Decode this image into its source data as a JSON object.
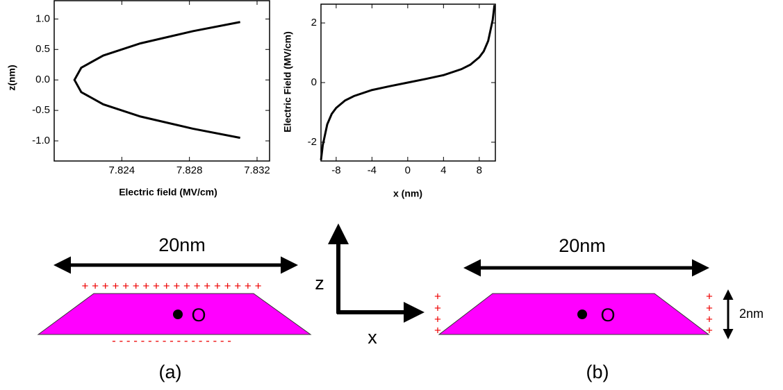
{
  "chart_data": [
    {
      "type": "line",
      "x_label": "Electric field (MV/cm)",
      "y_label": "z(nm)",
      "x": [
        7.831,
        7.8282,
        7.8251,
        7.8229,
        7.8216,
        7.8212,
        7.8216,
        7.8229,
        7.8251,
        7.8282,
        7.831
      ],
      "series": [
        {
          "color": "#000000",
          "values": [
            -0.95,
            -0.8,
            -0.6,
            -0.4,
            -0.2,
            0,
            0.2,
            0.4,
            0.6,
            0.8,
            0.95
          ]
        }
      ],
      "xlim": [
        7.82,
        7.83274
      ],
      "xticks": [
        7.824,
        7.828,
        7.832
      ],
      "ylim": [
        -1.33,
        1.3
      ],
      "yticks": [
        {
          "value": -1,
          "label": "-1.0"
        },
        -0.5,
        {
          "value": 0,
          "label": "0.0"
        },
        0.5,
        {
          "value": 1,
          "label": "1.0"
        }
      ]
    },
    {
      "type": "line",
      "x_label": "x (nm)",
      "y_label": "Electric Field (MV/cm)",
      "x": [
        -9.7,
        -9.5,
        -9,
        -8.5,
        -8,
        -7,
        -6,
        -4,
        -2,
        0,
        2,
        4,
        6,
        7,
        8,
        8.5,
        9,
        9.5,
        9.7
      ],
      "series": [
        {
          "color": "#000000",
          "values": [
            -2.6,
            -2.1,
            -1.4,
            -1.05,
            -0.85,
            -0.6,
            -0.45,
            -0.25,
            -0.12,
            0,
            0.12,
            0.25,
            0.45,
            0.6,
            0.85,
            1.05,
            1.4,
            2.1,
            2.6
          ]
        }
      ],
      "xlim": [
        -9.7,
        9.8
      ],
      "xticks": [
        -8,
        -4,
        0,
        4,
        8
      ],
      "ylim": [
        -2.63,
        2.63
      ],
      "yticks": [
        -2,
        0,
        2
      ]
    }
  ],
  "diagram": {
    "a": {
      "width": "20nm",
      "origin": "O",
      "plus": "+ + + + + + + + + + + + + + + + + +",
      "minus": "- - - - - - - - - - - - - - - - -",
      "caption": "(a)"
    },
    "axes": {
      "z": "z",
      "x": "x"
    },
    "b": {
      "width": "20nm",
      "origin": "O",
      "plus": "+",
      "height": "2nm",
      "caption": "(b)"
    }
  }
}
